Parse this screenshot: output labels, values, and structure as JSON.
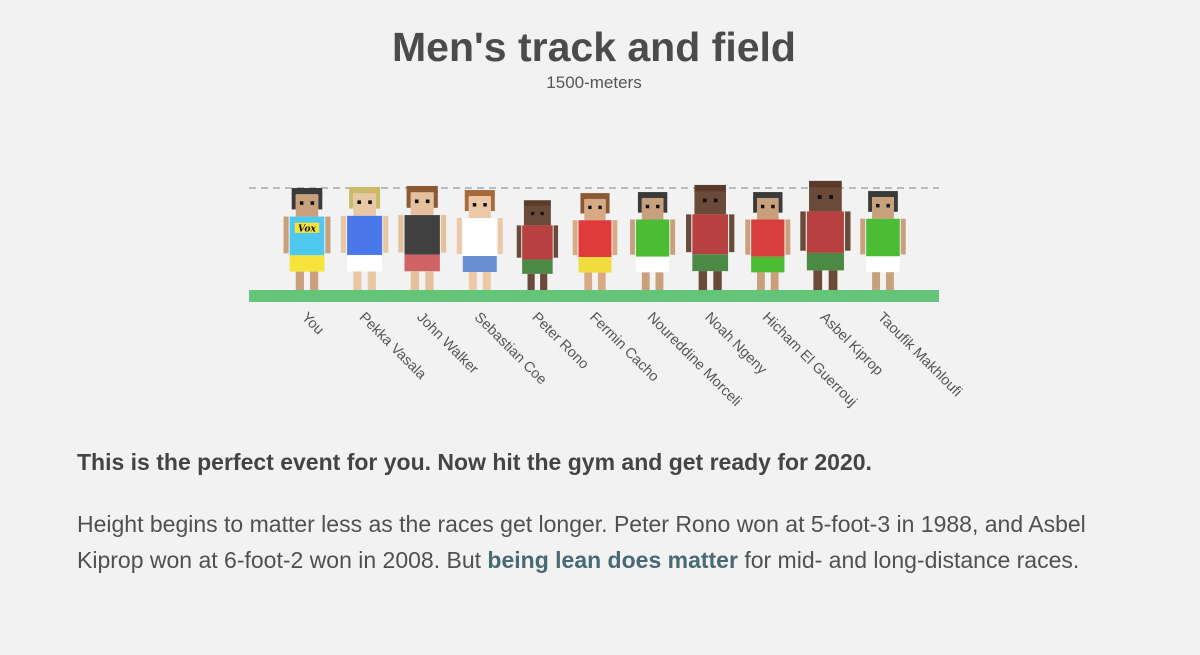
{
  "header": {
    "title": "Men's track and field",
    "subtitle": "1500-meters"
  },
  "figure": {
    "you_shirt_text": "Vox",
    "athletes": [
      {
        "name": "You",
        "hair": "#3a3a3a",
        "skin": "#c8a07c",
        "shirt": "#4fc8f0",
        "shorts": "#f6e43a",
        "bald": false
      },
      {
        "name": "Pekka Vasala",
        "hair": "#c9ba6a",
        "skin": "#e8c8a4",
        "shirt": "#4a78e8",
        "shorts": "#ffffff",
        "bald": false
      },
      {
        "name": "John Walker",
        "hair": "#8a5a34",
        "skin": "#e4c09c",
        "shirt": "#404040",
        "shorts": "#d06464",
        "bald": false
      },
      {
        "name": "Sebastian Coe",
        "hair": "#a66a3c",
        "skin": "#ecc8a6",
        "shirt": "#ffffff",
        "shorts": "#6a8ed4",
        "bald": false
      },
      {
        "name": "Peter Rono",
        "hair": "#5a3a2a",
        "skin": "#6a4a38",
        "shirt": "#b84040",
        "shorts": "#4a8a44",
        "bald": true
      },
      {
        "name": "Fermin Cacho",
        "hair": "#8a5a34",
        "skin": "#d8aa84",
        "shirt": "#e03a3a",
        "shorts": "#f0dc3c",
        "bald": false
      },
      {
        "name": "Noureddine Morceli",
        "hair": "#3a3a3a",
        "skin": "#c8a07c",
        "shirt": "#4cbc34",
        "shorts": "#ffffff",
        "bald": false
      },
      {
        "name": "Noah Ngeny",
        "hair": "#5a3a2a",
        "skin": "#6a4a38",
        "shirt": "#b84040",
        "shorts": "#4a8a44",
        "bald": true
      },
      {
        "name": "Hicham El Guerrouj",
        "hair": "#3a3a3a",
        "skin": "#c8a07c",
        "shirt": "#d83e3e",
        "shorts": "#4cbc34",
        "bald": false
      },
      {
        "name": "Asbel Kiprop",
        "hair": "#5a3a2a",
        "skin": "#6a4a38",
        "shirt": "#b84040",
        "shorts": "#4a8a44",
        "bald": true
      },
      {
        "name": "Taoufik Makhloufi",
        "hair": "#3a3a3a",
        "skin": "#c8a07c",
        "shirt": "#4cbc34",
        "shorts": "#ffffff",
        "bald": false
      }
    ],
    "relative_height": [
      1.0,
      1.01,
      1.02,
      0.98,
      0.88,
      0.95,
      0.96,
      1.03,
      0.96,
      1.07,
      0.97
    ],
    "ground_color": "#64c478",
    "reference_line_color": "#bbbbbb"
  },
  "verdict": "This is the perfect event for you. Now hit the gym and get ready for 2020.",
  "body": {
    "part1": "Height begins to matter less as the races get longer. Peter Rono won at 5-foot-3 in 1988, and Asbel Kiprop won at 6-foot-2 won in 2008. But ",
    "link": "being lean does matter",
    "part2": " for mid- and long-distance races."
  }
}
